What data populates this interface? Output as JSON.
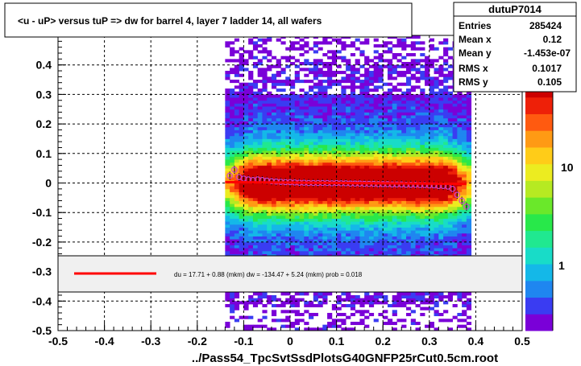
{
  "title": "<u - uP>       versus  tuP =>  dw for barrel 4, layer 7 ladder 14, all wafers",
  "xlabel": "../Pass54_TpcSvtSsdPlotsG40GNFP25rCut0.5cm.root",
  "stats": {
    "name": "dutuP7014",
    "rows": [
      {
        "label": "Entries",
        "value": "285424"
      },
      {
        "label": "Mean x",
        "value": "0.12"
      },
      {
        "label": "Mean y",
        "value": "-1.453e-07"
      },
      {
        "label": "RMS x",
        "value": "0.1017"
      },
      {
        "label": "RMS y",
        "value": "0.105"
      }
    ]
  },
  "fit_legend": "du =    17.71 +   0.88 (mkm) dw = -134.47 +   5.24 (mkm) prob = 0.018",
  "palette_labels": [
    "10",
    "10",
    "1"
  ],
  "palette_exponent": "2",
  "chart_data": {
    "type": "heatmap",
    "xlim": [
      -0.5,
      0.5
    ],
    "ylim": [
      -0.5,
      0.5
    ],
    "x_ticks": [
      "-0.5",
      "-0.4",
      "-0.3",
      "-0.2",
      "-0.1",
      "0",
      "0.1",
      "0.2",
      "0.3",
      "0.4",
      "0.5"
    ],
    "y_ticks": [
      "-0.5",
      "-0.4",
      "-0.3",
      "-0.2",
      "-0.1",
      "0",
      "0.1",
      "0.2",
      "0.3",
      "0.4"
    ],
    "grid": true,
    "z_scale": "log",
    "occupied_x_range": [
      -0.14,
      0.39
    ],
    "profile": {
      "x": [
        -0.13,
        -0.12,
        -0.11,
        -0.1,
        -0.09,
        -0.08,
        -0.07,
        -0.06,
        -0.05,
        -0.04,
        -0.03,
        -0.02,
        -0.01,
        0.0,
        0.01,
        0.02,
        0.03,
        0.04,
        0.05,
        0.06,
        0.07,
        0.08,
        0.09,
        0.1,
        0.11,
        0.12,
        0.13,
        0.14,
        0.15,
        0.16,
        0.17,
        0.18,
        0.19,
        0.2,
        0.21,
        0.22,
        0.23,
        0.24,
        0.25,
        0.26,
        0.27,
        0.28,
        0.29,
        0.3,
        0.31,
        0.32,
        0.33,
        0.34,
        0.35,
        0.36,
        0.37,
        0.38
      ],
      "y": [
        0.025,
        0.045,
        0.02,
        0.015,
        0.012,
        0.01,
        0.012,
        0.01,
        0.008,
        0.006,
        0.005,
        0.004,
        0.003,
        0.003,
        0.002,
        0.001,
        0.001,
        0.0,
        0.0,
        0.0,
        0.0,
        0.0,
        -0.001,
        0.0,
        -0.001,
        -0.001,
        -0.002,
        -0.002,
        -0.002,
        -0.003,
        -0.003,
        -0.003,
        -0.004,
        -0.004,
        -0.004,
        -0.005,
        -0.005,
        -0.005,
        -0.006,
        -0.006,
        -0.006,
        -0.007,
        -0.007,
        -0.008,
        -0.008,
        -0.01,
        -0.01,
        -0.012,
        -0.02,
        -0.04,
        -0.06,
        -0.08
      ]
    },
    "fit_line": {
      "x": [
        -0.14,
        0.38
      ],
      "y": [
        0.003,
        -0.003
      ]
    }
  }
}
